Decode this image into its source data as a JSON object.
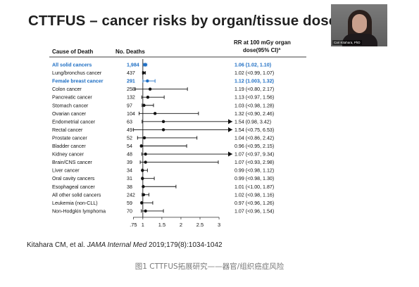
{
  "slide": {
    "title": "CTTFUS – cancer risks by organ/tissue dose",
    "citation_authors": "Kitahara CM, et al. ",
    "citation_journal": "JAMA Internal Med",
    "citation_rest": " 2019;179(8):1034-1042",
    "caption": "图1 CTTFUS拓展研究——器官/组织癌症风险"
  },
  "webcam": {
    "name_label": "Cari Kitahara, PhD"
  },
  "colors": {
    "highlight": "#1f6fc4",
    "text": "#111111",
    "line": "#000000"
  },
  "chart_data": {
    "type": "forest",
    "column_headers": {
      "cause": "Cause of Death",
      "deaths": "No. Deaths",
      "rr_line1": "RR at 100 mGy organ",
      "rr_line2": "dose(95% CI)ª"
    },
    "x_ticks": [
      0.75,
      1,
      1.5,
      2,
      2.5,
      3
    ],
    "x_tick_labels": [
      ".75",
      "1",
      "1.5",
      "2",
      "2.5",
      "3"
    ],
    "xlim": [
      0.67,
      3.35
    ],
    "reference_line": 1,
    "rows": [
      {
        "cause": "All solid cancers",
        "deaths": "1,984",
        "rr": 1.06,
        "lo": 1.02,
        "hi": 1.1,
        "label": "1.06 (1.02, 1.10)",
        "highlight": true
      },
      {
        "cause": "Lung/bronchus cancer",
        "deaths": "437",
        "rr": 1.02,
        "lo": 0.99,
        "hi": 1.07,
        "label": "1.02 (<0.99, 1.07)",
        "highlight": false
      },
      {
        "cause": "Female breast cancer",
        "deaths": "291",
        "rr": 1.12,
        "lo": 1.003,
        "hi": 1.32,
        "label": "1.12 (1.003, 1.32)",
        "highlight": true
      },
      {
        "cause": "Colon cancer",
        "deaths": "258",
        "rr": 1.19,
        "lo": 0.8,
        "hi": 2.17,
        "label": "1.19 (<0.80, 2.17)",
        "highlight": false
      },
      {
        "cause": "Pancreatic cancer",
        "deaths": "132",
        "rr": 1.13,
        "lo": 0.97,
        "hi": 1.56,
        "label": "1.13 (<0.97, 1.56)",
        "highlight": false
      },
      {
        "cause": "Stomach cancer",
        "deaths": "97",
        "rr": 1.03,
        "lo": 0.98,
        "hi": 1.28,
        "label": "1.03 (<0.98, 1.28)",
        "highlight": false
      },
      {
        "cause": "Ovarian cancer",
        "deaths": "104",
        "rr": 1.32,
        "lo": 0.9,
        "hi": 2.46,
        "label": "1.32 (<0.90, 2.46)",
        "highlight": false
      },
      {
        "cause": "Endometrial cancer",
        "deaths": "63",
        "rr": 1.54,
        "lo": 0.98,
        "hi": 3.42,
        "label": "1.54 (0.98, 3.42)",
        "highlight": false
      },
      {
        "cause": "Rectal cancer",
        "deaths": "49",
        "rr": 1.54,
        "lo": 0.75,
        "hi": 6.53,
        "label": "1.54 (<0.75, 6.53)",
        "highlight": false
      },
      {
        "cause": "Prostate cancer",
        "deaths": "52",
        "rr": 1.04,
        "lo": 0.86,
        "hi": 2.42,
        "label": "1.04 (<0.86, 2.42)",
        "highlight": false
      },
      {
        "cause": "Bladder cancer",
        "deaths": "54",
        "rr": 0.96,
        "lo": 0.95,
        "hi": 2.15,
        "label": "0.96 (<0.95, 2.15)",
        "highlight": false
      },
      {
        "cause": "Kidney cancer",
        "deaths": "48",
        "rr": 1.07,
        "lo": 0.97,
        "hi": 9.34,
        "label": "1.07 (<0.97, 9.34)",
        "highlight": false
      },
      {
        "cause": "Brain/CNS cancer",
        "deaths": "39",
        "rr": 1.07,
        "lo": 0.93,
        "hi": 2.98,
        "label": "1.07 (<0.93, 2.98)",
        "highlight": false
      },
      {
        "cause": "Liver cancer",
        "deaths": "34",
        "rr": 0.99,
        "lo": 0.98,
        "hi": 1.12,
        "label": "0.99 (<0.98, 1.12)",
        "highlight": false
      },
      {
        "cause": "Oral cavity cancers",
        "deaths": "31",
        "rr": 0.99,
        "lo": 0.98,
        "hi": 1.3,
        "label": "0.99 (<0.98, 1.30)",
        "highlight": false
      },
      {
        "cause": "Esophageal cancer",
        "deaths": "38",
        "rr": 1.01,
        "lo": 1.0,
        "hi": 1.87,
        "label": "1.01 (<1.00, 1.87)",
        "highlight": false
      },
      {
        "cause": "All other solid cancers",
        "deaths": "242",
        "rr": 1.02,
        "lo": 0.98,
        "hi": 1.16,
        "label": "1.02 (<0.98, 1.16)",
        "highlight": false
      },
      {
        "cause": "Leukemia (non-CLL)",
        "deaths": "59",
        "rr": 0.97,
        "lo": 0.96,
        "hi": 1.26,
        "label": "0.97 (<0.96, 1.26)",
        "highlight": false
      },
      {
        "cause": "Non-Hodgkin lymphoma",
        "deaths": "70",
        "rr": 1.07,
        "lo": 0.96,
        "hi": 1.54,
        "label": "1.07 (<0.96, 1.54)",
        "highlight": false
      }
    ]
  }
}
